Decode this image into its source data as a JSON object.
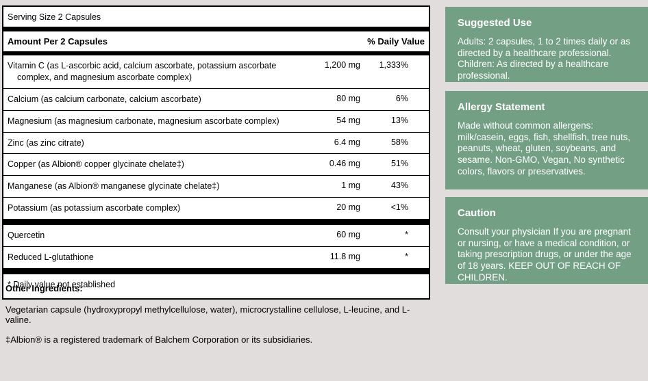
{
  "label": {
    "serving_size": "Serving Size 2 Capsules",
    "header": {
      "amount_label": "Amount Per 2 Capsules",
      "dv_label": "% Daily Value"
    },
    "rows": [
      {
        "name": "Vitamin C (as L-ascorbic acid, calcium ascorbate, potassium ascorbate complex, and magnesium ascorbate complex)",
        "amount": "1,200 mg",
        "dv": "1,333%"
      },
      {
        "name": "Calcium (as calcium carbonate, calcium ascorbate)",
        "amount": "80 mg",
        "dv": "6%"
      },
      {
        "name": "Magnesium (as magnesium carbonate, magnesium ascorbate complex)",
        "amount": "54 mg",
        "dv": "13%"
      },
      {
        "name": "Zinc (as zinc citrate)",
        "amount": "6.4 mg",
        "dv": "58%"
      },
      {
        "name": "Copper (as Albion® copper glycinate chelate‡)",
        "amount": "0.46 mg",
        "dv": "51%"
      },
      {
        "name": "Manganese (as Albion® manganese glycinate chelate‡)",
        "amount": "1 mg",
        "dv": "43%"
      },
      {
        "name": "Potassium (as potassium ascorbate complex)",
        "amount": "20 mg",
        "dv": "<1%"
      }
    ],
    "extra_rows": [
      {
        "name": "Quercetin",
        "amount": "60 mg",
        "dv": "*"
      },
      {
        "name": "Reduced L-glutathione",
        "amount": "11.8 mg",
        "dv": "*"
      }
    ],
    "footnote": "* Daily value not established"
  },
  "other_ingredients": {
    "heading": "Other Ingredients:",
    "text": "Vegetarian capsule (hydroxypropyl methylcellulose, water), microcrystalline cellulose, L-leucine, and L-valine.",
    "trademark": "‡Albion® is a registered trademark of Balchem Corporation or its subsidiaries."
  },
  "panels": [
    {
      "title": "Suggested Use",
      "body": "Adults: 2 capsules, 1 to 2 times daily or as directed by a healthcare professional. Children: As directed by a healthcare professional."
    },
    {
      "title": "Allergy Statement",
      "body": "Made without common allergens: milk/casein, eggs, fish, shellfish, tree nuts, peanuts, wheat, gluten, soybeans, and sesame. Non-GMO, Vegan, No synthetic colors, flavors or preservatives."
    },
    {
      "title": "Caution",
      "body": "Consult your physician If you are pregnant or nursing, or have a medical condition, or taking prescription drugs, or under the age of 18 years. KEEP OUT OF REACH OF CHILDREN."
    }
  ],
  "colors": {
    "page_bg": "#e2dddd",
    "panel_green": "#73a085",
    "panel_text": "#ffffff",
    "table_bg": "#ffffff",
    "rule_black": "#000000"
  }
}
